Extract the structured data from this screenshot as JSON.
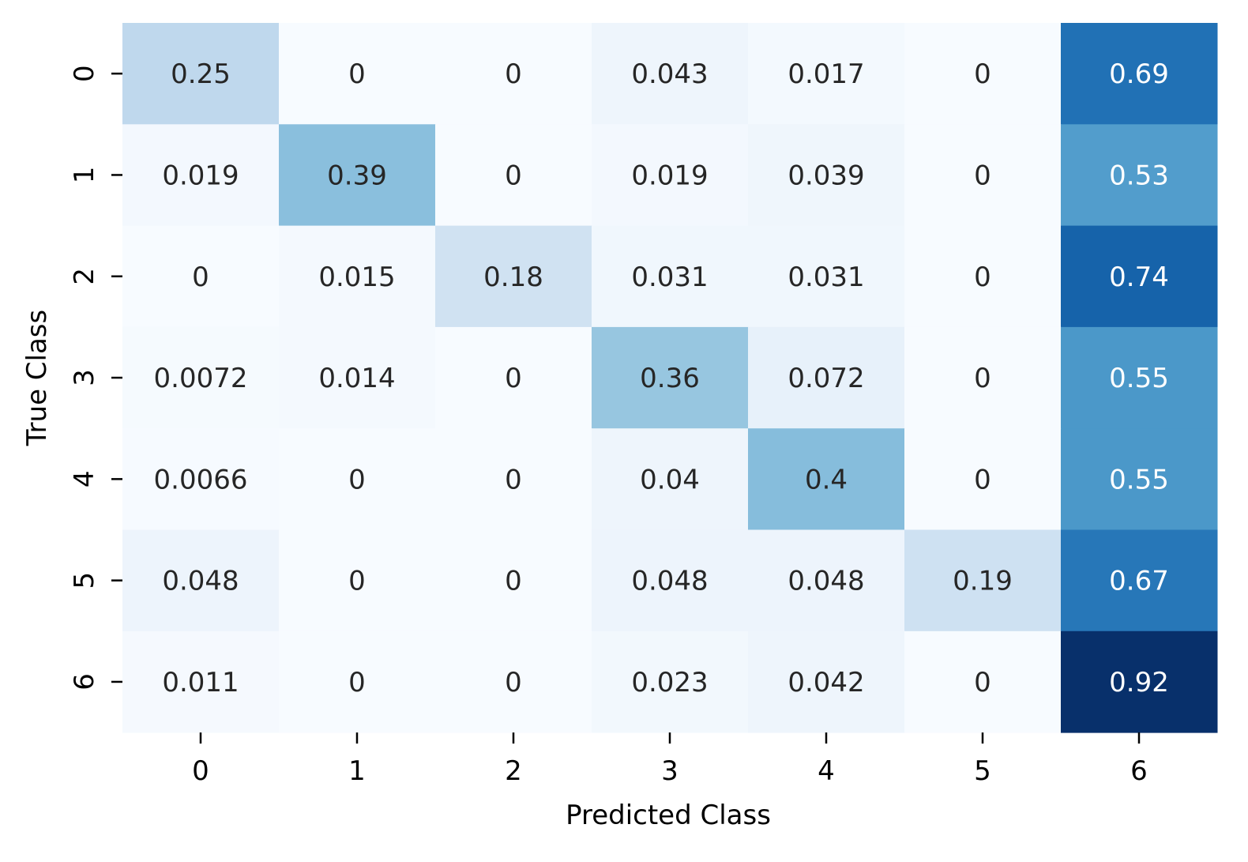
{
  "chart_data": {
    "type": "heatmap",
    "title": "",
    "xlabel": "Predicted Class",
    "ylabel": "True Class",
    "x_categories": [
      "0",
      "1",
      "2",
      "3",
      "4",
      "5",
      "6"
    ],
    "y_categories": [
      "0",
      "1",
      "2",
      "3",
      "4",
      "5",
      "6"
    ],
    "values": [
      [
        0.25,
        0,
        0,
        0.043,
        0.017,
        0,
        0.69
      ],
      [
        0.019,
        0.39,
        0,
        0.019,
        0.039,
        0,
        0.53
      ],
      [
        0,
        0.015,
        0.18,
        0.031,
        0.031,
        0,
        0.74
      ],
      [
        0.0072,
        0.014,
        0,
        0.36,
        0.072,
        0,
        0.55
      ],
      [
        0.0066,
        0,
        0,
        0.04,
        0.4,
        0,
        0.55
      ],
      [
        0.048,
        0,
        0,
        0.048,
        0.048,
        0.19,
        0.67
      ],
      [
        0.011,
        0,
        0,
        0.023,
        0.042,
        0,
        0.92
      ]
    ],
    "colormap": "Blues",
    "vmin": 0,
    "vmax": 0.92,
    "colorbar": false,
    "grid": false
  }
}
